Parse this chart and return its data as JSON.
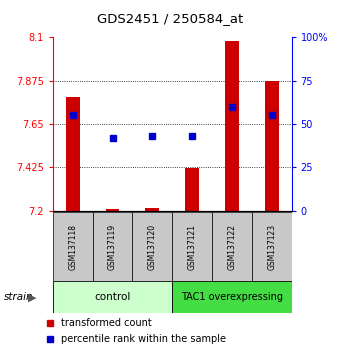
{
  "title": "GDS2451 / 250584_at",
  "samples": [
    "GSM137118",
    "GSM137119",
    "GSM137120",
    "GSM137121",
    "GSM137122",
    "GSM137123"
  ],
  "red_values": [
    7.79,
    7.21,
    7.215,
    7.42,
    8.08,
    7.875
  ],
  "blue_percentiles": [
    55,
    42,
    43,
    43,
    60,
    55
  ],
  "ymin": 7.2,
  "ymax": 8.1,
  "yticks": [
    7.2,
    7.425,
    7.65,
    7.875,
    8.1
  ],
  "right_yticks": [
    0,
    25,
    50,
    75,
    100
  ],
  "bar_color": "#cc0000",
  "dot_color": "#0000cc",
  "group_box_color_light": "#ccffcc",
  "group_box_color_dark": "#44dd44",
  "sample_box_color": "#c8c8c8",
  "legend_red_label": "transformed count",
  "legend_blue_label": "percentile rank within the sample"
}
